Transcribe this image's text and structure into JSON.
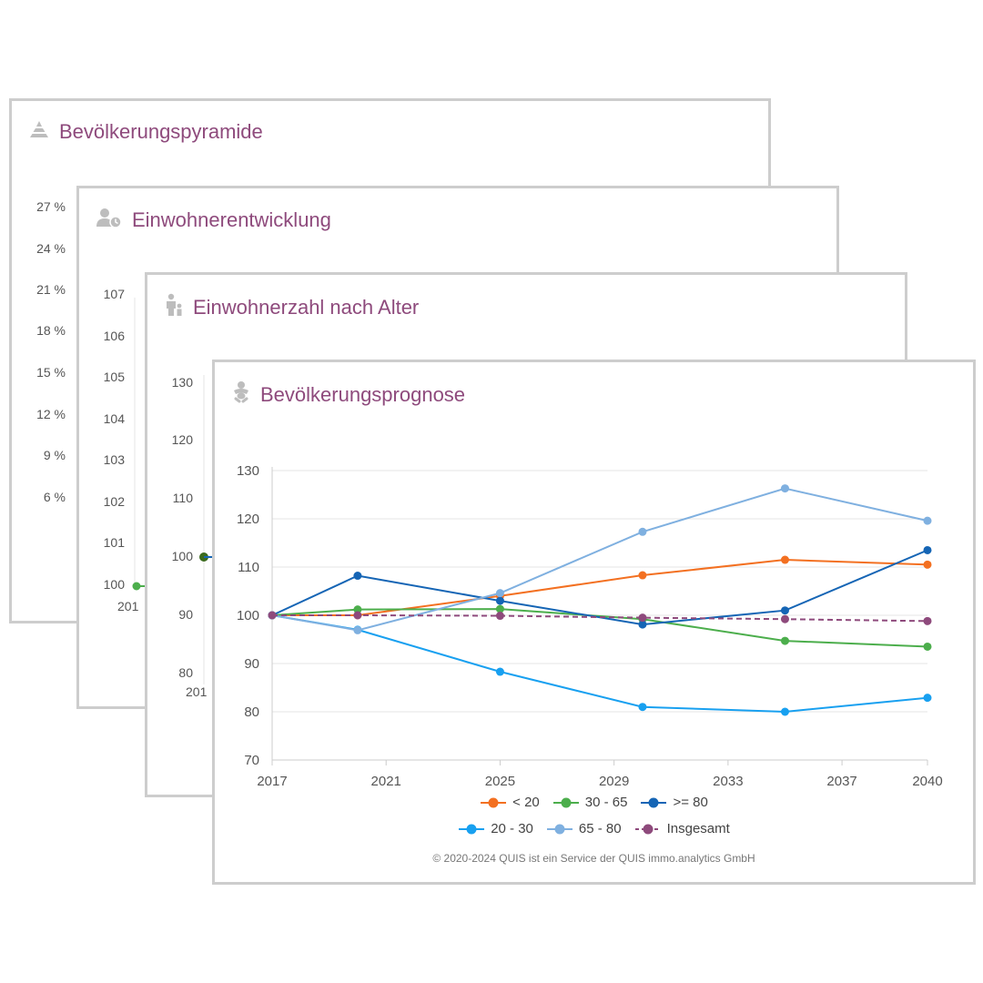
{
  "cards": {
    "pyramid": {
      "title": "Bevölkerungspyramide",
      "icon": "pyramid-icon",
      "yticks": [
        "27 %",
        "24 %",
        "21 %",
        "18 %",
        "15 %",
        "12 %",
        "9 %",
        "6 %"
      ]
    },
    "einwohner": {
      "title": "Einwohnerentwicklung",
      "icon": "person-clock-icon",
      "yticks": [
        "107",
        "106",
        "105",
        "104",
        "103",
        "102",
        "101",
        "100"
      ],
      "xtick": "201"
    },
    "alter": {
      "title": "Einwohnerzahl nach Alter",
      "icon": "person-child-icon",
      "yticks": [
        "130",
        "120",
        "110",
        "100",
        "90",
        "80"
      ],
      "xtick": "201"
    },
    "prognose": {
      "title": "Bevölkerungsprognose",
      "icon": "baby-icon",
      "copyright": "© 2020-2024 QUIS ist ein Service der QUIS immo.analytics GmbH"
    }
  },
  "chart_data": {
    "type": "line",
    "xlim": [
      2017,
      2040
    ],
    "ylim": [
      70,
      130
    ],
    "xticks": [
      2017,
      2021,
      2025,
      2029,
      2033,
      2037,
      2040
    ],
    "yticks": [
      70,
      80,
      90,
      100,
      110,
      120,
      130
    ],
    "x": [
      2017,
      2020,
      2025,
      2030,
      2035,
      2040
    ],
    "grid": true,
    "legend_position": "bottom",
    "series": [
      {
        "name": "< 20",
        "color": "#f37021",
        "dash": false,
        "values": [
          100,
          100,
          104,
          108.3,
          111.5,
          110.5
        ]
      },
      {
        "name": "30 - 65",
        "color": "#4cae4c",
        "dash": false,
        "values": [
          100,
          101.2,
          101.3,
          99.2,
          94.7,
          93.5
        ]
      },
      {
        "name": ">= 80",
        "color": "#1565b5",
        "dash": false,
        "values": [
          100,
          108.2,
          103,
          98.1,
          101,
          113.5
        ]
      },
      {
        "name": "20 - 30",
        "color": "#18a0f0",
        "dash": false,
        "values": [
          100,
          97,
          88.3,
          81,
          80,
          82.9
        ]
      },
      {
        "name": "65 - 80",
        "color": "#7fb0e0",
        "dash": false,
        "values": [
          100,
          96.9,
          104.6,
          117.3,
          126.3,
          119.6
        ]
      },
      {
        "name": "Insgesamt",
        "color": "#8e4a7c",
        "dash": true,
        "values": [
          100,
          100,
          99.9,
          99.5,
          99.2,
          98.8
        ]
      }
    ]
  }
}
